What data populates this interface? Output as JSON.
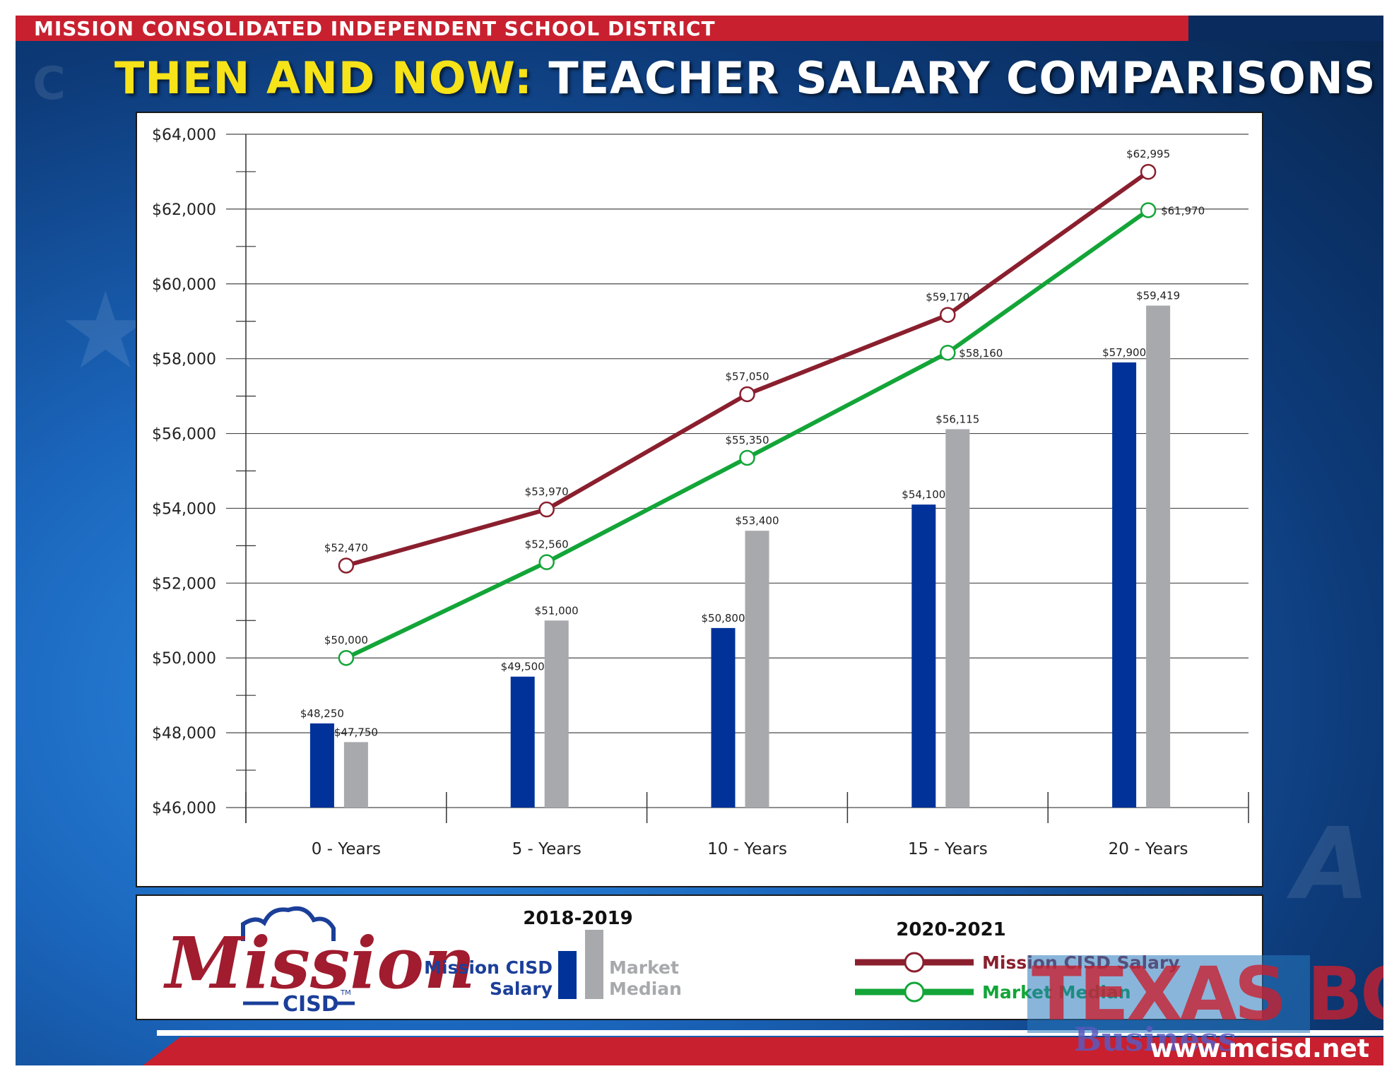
{
  "header": {
    "district": "MISSION CONSOLIDATED INDEPENDENT SCHOOL DISTRICT",
    "title_highlight": "THEN AND NOW:",
    "title_rest": "TEACHER SALARY COMPARISONS"
  },
  "colors": {
    "mission_bar": "#00329a",
    "market_bar": "#a7a9ac",
    "mission_line": "#8a1f2e",
    "market_line": "#13a538",
    "brand_red": "#c8202f",
    "brand_blue": "#1b3f99"
  },
  "chart_data": {
    "type": "bar",
    "title": "",
    "xlabel": "",
    "ylabel": "",
    "categories": [
      "0 - Years",
      "5 - Years",
      "10 - Years",
      "15 - Years",
      "20 - Years"
    ],
    "ylim": [
      46000,
      64000
    ],
    "yticks": [
      46000,
      48000,
      50000,
      52000,
      54000,
      56000,
      58000,
      60000,
      62000,
      64000
    ],
    "ytick_labels": [
      "$46,000",
      "$48,000",
      "$50,000",
      "$52,000",
      "$54,000",
      "$56,000",
      "$58,000",
      "$60,000",
      "$62,000",
      "$64,000"
    ],
    "grid": true,
    "bar_series": [
      {
        "name": "Mission CISD Salary",
        "period": "2018-2019",
        "values": [
          48250,
          49500,
          50800,
          54100,
          57900
        ],
        "labels": [
          "$48,250",
          "$49,500",
          "$50,800",
          "$54,100",
          "$57,900"
        ]
      },
      {
        "name": "Market Median",
        "period": "2018-2019",
        "values": [
          47750,
          51000,
          53400,
          56115,
          59419
        ],
        "labels": [
          "$47,750",
          "$51,000",
          "$53,400",
          "$56,115",
          "$59,419"
        ]
      }
    ],
    "line_series": [
      {
        "name": "Mission CISD Salary",
        "period": "2020-2021",
        "values": [
          52470,
          53970,
          57050,
          59170,
          62995
        ],
        "labels": [
          "$52,470",
          "$53,970",
          "$57,050",
          "$59,170",
          "$62,995"
        ]
      },
      {
        "name": "Market Median",
        "period": "2020-2021",
        "values": [
          50000,
          52560,
          55350,
          58160,
          61970
        ],
        "labels": [
          "$50,000",
          "$52,560",
          "$55,350",
          "$58,160",
          "$61,970"
        ]
      }
    ],
    "legend": {
      "placement": "bottom",
      "bar_period": "2018-2019",
      "bar_mission_label_1": "Mission CISD",
      "bar_mission_label_2": "Salary",
      "bar_market_label_1": "Market",
      "bar_market_label_2": "Median",
      "line_period": "2020-2021",
      "line_mission_label": "Mission CISD Salary",
      "line_market_label": "Market Median"
    }
  },
  "logo": {
    "wordmark": "Mission",
    "sub": "CISD",
    "tm": "TM"
  },
  "footer": {
    "website": "www.mcisd.net"
  },
  "watermark": {
    "line1": "TEXAS BORDER",
    "line2": "Business"
  }
}
